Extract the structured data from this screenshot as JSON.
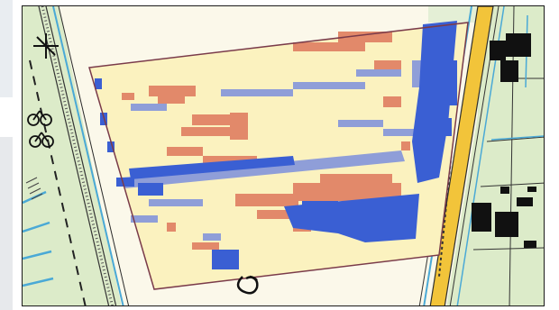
{
  "map": {
    "kind": "topographic field map with classified parcel overlay",
    "colors": {
      "background": "#fbf8ea",
      "meadow": "#dcebc9",
      "water": "#4aa9d6",
      "road": "#2f2f2f",
      "road_fill": "#f2c43a",
      "building": "#111111",
      "class_light_yellow": "#fbf2bf",
      "class_orange": "#e2896a",
      "class_light_blue": "#8f9ed8",
      "class_blue": "#3a5fd3",
      "parcel_outline": "#7a3b4a"
    },
    "icons": [
      "compass-cross-icon",
      "bicycle-icon",
      "loop-symbol-icon"
    ]
  }
}
